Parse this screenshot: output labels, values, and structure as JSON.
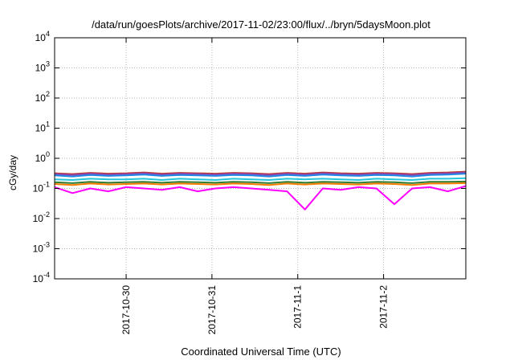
{
  "chart_data": {
    "type": "line",
    "title": "/data/run/goesPlots/archive/2017-11-02/23:00/flux/../bryn/5daysMoon.plot",
    "xlabel": "Coordinated Universal Time (UTC)",
    "ylabel": "cGy/day",
    "yscale": "log",
    "ylim": [
      0.0001,
      10000
    ],
    "xlim": [
      "2017-10-29T04:00",
      "2017-11-02T23:00"
    ],
    "grid": true,
    "y_ticks": [
      {
        "value": 0.0001,
        "base": "10",
        "exp": "-4"
      },
      {
        "value": 0.001,
        "base": "10",
        "exp": "-3"
      },
      {
        "value": 0.01,
        "base": "10",
        "exp": "-2"
      },
      {
        "value": 0.1,
        "base": "10",
        "exp": "-1"
      },
      {
        "value": 1,
        "base": "10",
        "exp": "0"
      },
      {
        "value": 10,
        "base": "10",
        "exp": "1"
      },
      {
        "value": 100,
        "base": "10",
        "exp": "2"
      },
      {
        "value": 1000,
        "base": "10",
        "exp": "3"
      },
      {
        "value": 10000,
        "base": "10",
        "exp": "4"
      }
    ],
    "x_ticks": [
      {
        "value": "2017-10-30T00:00",
        "label": "2017-10-30"
      },
      {
        "value": "2017-10-31T00:00",
        "label": "2017-10-31"
      },
      {
        "value": "2017-11-01T00:00",
        "label": "2017-11-1"
      },
      {
        "value": "2017-11-02T00:00",
        "label": "2017-11-2"
      }
    ],
    "x": [
      "2017-10-29T04:00",
      "2017-10-29T09:00",
      "2017-10-29T14:00",
      "2017-10-29T19:00",
      "2017-10-30T00:00",
      "2017-10-30T05:00",
      "2017-10-30T10:00",
      "2017-10-30T15:00",
      "2017-10-30T20:00",
      "2017-10-31T01:00",
      "2017-10-31T06:00",
      "2017-10-31T11:00",
      "2017-10-31T16:00",
      "2017-10-31T21:00",
      "2017-11-01T02:00",
      "2017-11-01T07:00",
      "2017-11-01T12:00",
      "2017-11-01T17:00",
      "2017-11-01T22:00",
      "2017-11-02T03:00",
      "2017-11-02T08:00",
      "2017-11-02T13:00",
      "2017-11-02T18:00",
      "2017-11-02T23:00"
    ],
    "series": [
      {
        "color": "#c0392b",
        "values": [
          0.32,
          0.3,
          0.33,
          0.31,
          0.32,
          0.34,
          0.31,
          0.33,
          0.32,
          0.31,
          0.33,
          0.32,
          0.3,
          0.33,
          0.31,
          0.34,
          0.32,
          0.31,
          0.33,
          0.32,
          0.3,
          0.33,
          0.34,
          0.36
        ]
      },
      {
        "color": "#8e44ad",
        "values": [
          0.3,
          0.28,
          0.31,
          0.29,
          0.3,
          0.32,
          0.29,
          0.31,
          0.3,
          0.29,
          0.31,
          0.3,
          0.28,
          0.31,
          0.29,
          0.32,
          0.3,
          0.29,
          0.31,
          0.3,
          0.28,
          0.31,
          0.32,
          0.34
        ]
      },
      {
        "color": "#1e88e5",
        "values": [
          0.27,
          0.25,
          0.28,
          0.26,
          0.27,
          0.29,
          0.26,
          0.28,
          0.27,
          0.26,
          0.28,
          0.27,
          0.25,
          0.28,
          0.26,
          0.29,
          0.27,
          0.26,
          0.28,
          0.27,
          0.25,
          0.28,
          0.29,
          0.31
        ]
      },
      {
        "color": "#26c6da",
        "values": [
          0.2,
          0.19,
          0.21,
          0.2,
          0.2,
          0.21,
          0.19,
          0.21,
          0.2,
          0.19,
          0.21,
          0.2,
          0.19,
          0.21,
          0.2,
          0.21,
          0.2,
          0.19,
          0.21,
          0.2,
          0.19,
          0.21,
          0.21,
          0.22
        ]
      },
      {
        "color": "#2e7d32",
        "values": [
          0.16,
          0.15,
          0.165,
          0.155,
          0.16,
          0.165,
          0.155,
          0.165,
          0.16,
          0.155,
          0.165,
          0.16,
          0.15,
          0.165,
          0.155,
          0.165,
          0.16,
          0.155,
          0.165,
          0.16,
          0.15,
          0.165,
          0.165,
          0.17
        ]
      },
      {
        "color": "#f57c00",
        "values": [
          0.14,
          0.13,
          0.145,
          0.135,
          0.14,
          0.145,
          0.135,
          0.145,
          0.14,
          0.135,
          0.145,
          0.14,
          0.13,
          0.145,
          0.135,
          0.145,
          0.14,
          0.135,
          0.145,
          0.14,
          0.13,
          0.145,
          0.145,
          0.15
        ]
      },
      {
        "color": "#ff00ff",
        "values": [
          0.11,
          0.07,
          0.1,
          0.08,
          0.11,
          0.1,
          0.09,
          0.11,
          0.08,
          0.1,
          0.11,
          0.1,
          0.09,
          0.08,
          0.02,
          0.1,
          0.09,
          0.11,
          0.1,
          0.03,
          0.1,
          0.11,
          0.08,
          0.12
        ]
      }
    ]
  }
}
